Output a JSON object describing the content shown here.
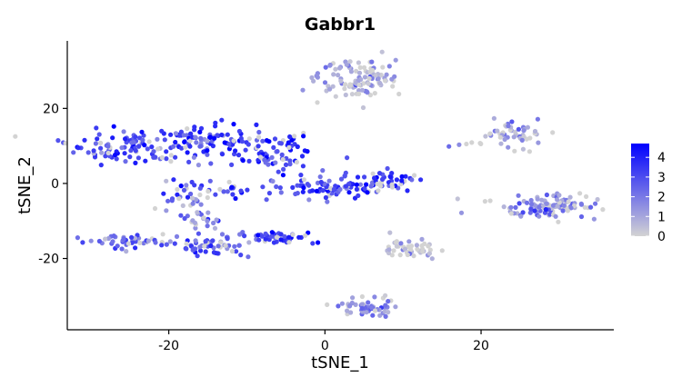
{
  "chart_data": {
    "type": "scatter",
    "title": "Gabbr1",
    "xlabel": "tSNE_1",
    "ylabel": "tSNE_2",
    "xlim": [
      -33,
      37
    ],
    "ylim": [
      -39,
      38
    ],
    "xticks": [
      {
        "value": -20,
        "label": "-20"
      },
      {
        "value": 0,
        "label": "0"
      },
      {
        "value": 20,
        "label": "20"
      }
    ],
    "yticks": [
      {
        "value": 20,
        "label": "20"
      },
      {
        "value": 0,
        "label": "0"
      },
      {
        "value": -20,
        "label": "-20"
      }
    ],
    "grid": false,
    "legend": {
      "placement": "right",
      "type": "colorbar",
      "min": 0,
      "max": 4.7,
      "low_color": "#d3d3d3",
      "high_color": "#0000ff",
      "ticks": [
        {
          "value": 4,
          "label": "4"
        },
        {
          "value": 3,
          "label": "3"
        },
        {
          "value": 2,
          "label": "2"
        },
        {
          "value": 1,
          "label": "1"
        },
        {
          "value": 0,
          "label": "0"
        }
      ]
    },
    "clusters": [
      {
        "cx": -24,
        "cy": 10,
        "sx": 4.5,
        "sy": 2.2,
        "n": 110,
        "expr": 3.0
      },
      {
        "cx": -15,
        "cy": 11,
        "sx": 3.5,
        "sy": 2.2,
        "n": 80,
        "expr": 3.2
      },
      {
        "cx": -7,
        "cy": 8,
        "sx": 3.0,
        "sy": 3.0,
        "n": 70,
        "expr": 3.3
      },
      {
        "cx": 0,
        "cy": -1,
        "sx": 4.5,
        "sy": 1.6,
        "n": 90,
        "expr": 3.2
      },
      {
        "cx": 8,
        "cy": 1,
        "sx": 2.5,
        "sy": 1.4,
        "n": 40,
        "expr": 3.4
      },
      {
        "cx": -17,
        "cy": -3,
        "sx": 2.5,
        "sy": 2.5,
        "n": 40,
        "expr": 2.8
      },
      {
        "cx": -12,
        "cy": -2,
        "sx": 1.0,
        "sy": 1.0,
        "n": 14,
        "expr": 3.3
      },
      {
        "cx": -16,
        "cy": -9,
        "sx": 1.3,
        "sy": 1.6,
        "n": 18,
        "expr": 1.2
      },
      {
        "cx": -25,
        "cy": -15.5,
        "sx": 3.0,
        "sy": 0.8,
        "n": 45,
        "expr": 2.4
      },
      {
        "cx": -15,
        "cy": -17,
        "sx": 2.5,
        "sy": 1.6,
        "n": 55,
        "expr": 2.8
      },
      {
        "cx": -6,
        "cy": -14.5,
        "sx": 3.2,
        "sy": 0.9,
        "n": 45,
        "expr": 3.3
      },
      {
        "cx": 4.5,
        "cy": 28,
        "sx": 2.5,
        "sy": 3.0,
        "n": 110,
        "expr": 0.7
      },
      {
        "cx": 24,
        "cy": 13,
        "sx": 2.0,
        "sy": 1.8,
        "n": 50,
        "expr": 1.0
      },
      {
        "cx": 17.5,
        "cy": 10.5,
        "sx": 0.7,
        "sy": 0.4,
        "n": 5,
        "expr": 2.5
      },
      {
        "cx": 28,
        "cy": -6,
        "sx": 3.5,
        "sy": 1.6,
        "n": 110,
        "expr": 1.4
      },
      {
        "cx": 11,
        "cy": -17.5,
        "sx": 2.0,
        "sy": 1.4,
        "n": 45,
        "expr": 0.4
      },
      {
        "cx": 5.5,
        "cy": -33,
        "sx": 2.0,
        "sy": 1.3,
        "n": 55,
        "expr": 1.4
      }
    ]
  }
}
